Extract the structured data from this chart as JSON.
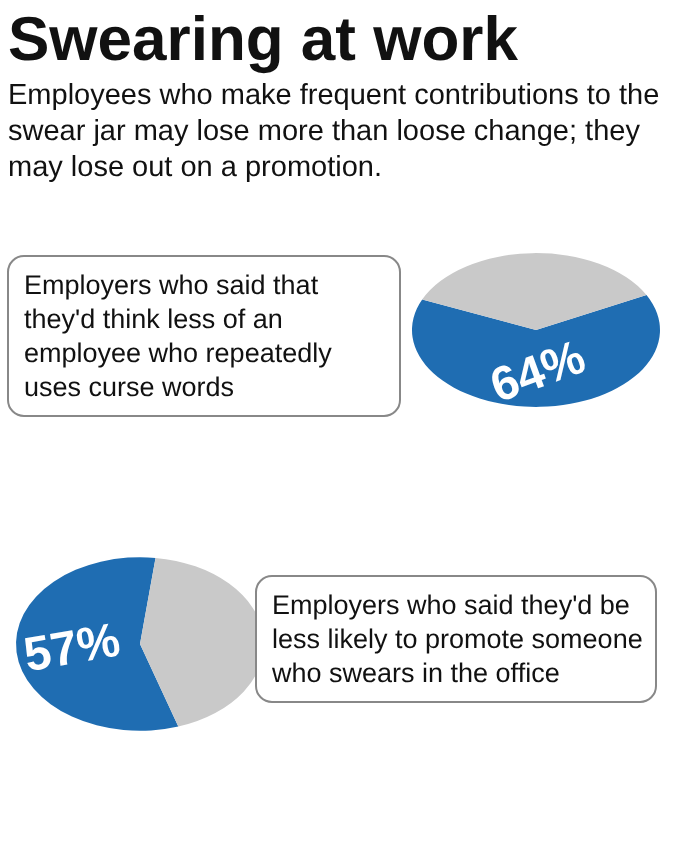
{
  "chart_data": [
    {
      "type": "pie",
      "title": "Swearing at work",
      "subtitle": "Employees who make frequent contributions to the swear jar may lose more than loose change; they may lose out on a promotion.",
      "categories": [
        null,
        null
      ],
      "values": [
        64,
        36
      ],
      "colors": [
        "#1f6db2",
        "#c9c9c9"
      ],
      "value_labels": [
        "64%",
        null
      ],
      "annotations": [
        "Employers who said that they'd think less of an employee who repeatedly uses curse words"
      ]
    },
    {
      "type": "pie",
      "categories": [
        null,
        null
      ],
      "values": [
        57,
        43
      ],
      "colors": [
        "#1f6db2",
        "#c9c9c9"
      ],
      "value_labels": [
        "57%",
        null
      ],
      "annotations": [
        "Employers who said they'd be less likely to promote someone who swears in the office"
      ]
    }
  ]
}
